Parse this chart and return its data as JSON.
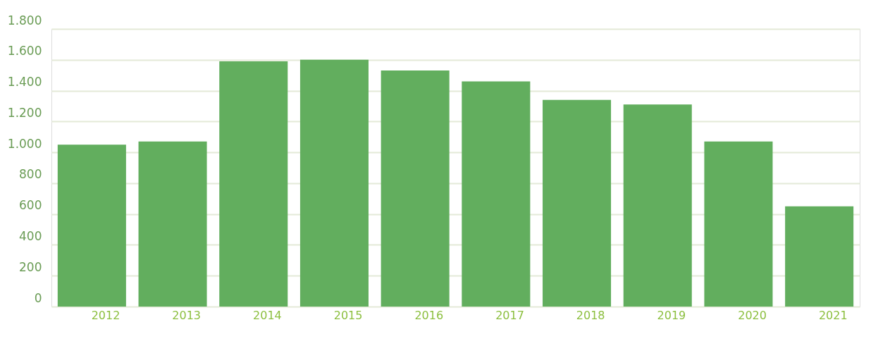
{
  "chart_data": {
    "type": "bar",
    "categories": [
      "2012",
      "2013",
      "2014",
      "2015",
      "2016",
      "2017",
      "2018",
      "2019",
      "2020",
      "2021"
    ],
    "values": [
      1050,
      1070,
      1590,
      1600,
      1530,
      1460,
      1340,
      1310,
      1070,
      650
    ],
    "color": "#62ae5e",
    "ylim": [
      0,
      1800
    ],
    "yticks": [
      0,
      200,
      400,
      600,
      800,
      {
        "value": 1000,
        "label": "1.000"
      },
      {
        "value": 1200,
        "label": "1.200"
      },
      {
        "value": 1400,
        "label": "1.400"
      },
      {
        "value": 1600,
        "label": "1.600"
      },
      {
        "value": 1800,
        "label": "1.800"
      }
    ],
    "grid": "y"
  }
}
